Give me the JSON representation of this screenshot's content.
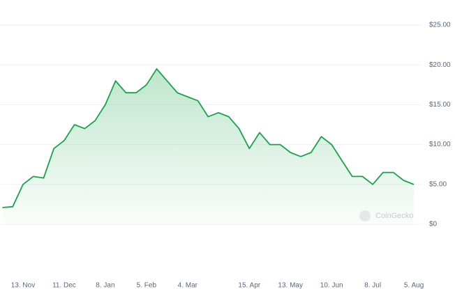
{
  "chart_data": {
    "type": "area",
    "watermark": "CoinGecko",
    "categories": [
      null,
      null,
      "13. Nov",
      null,
      null,
      null,
      "11. Dec",
      null,
      null,
      null,
      "8. Jan",
      null,
      null,
      null,
      "5. Feb",
      null,
      null,
      null,
      "4. Mar",
      null,
      null,
      null,
      null,
      null,
      "15. Apr",
      null,
      null,
      null,
      "13. May",
      null,
      null,
      null,
      "10. Jun",
      null,
      null,
      null,
      "8. Jul",
      null,
      null,
      null,
      "5. Aug"
    ],
    "values": [
      2.1,
      2.2,
      5,
      6,
      5.8,
      9.5,
      10.5,
      12.5,
      12,
      13,
      15,
      18,
      16.5,
      16.5,
      17.5,
      19.5,
      18,
      16.5,
      16,
      15.5,
      13.5,
      14,
      13.5,
      12,
      9.5,
      11.5,
      10,
      10,
      9,
      8.5,
      9,
      11,
      10,
      8,
      6,
      6,
      5,
      6.5,
      6.5,
      5.5,
      5
    ],
    "color": "#16a34a",
    "ylim": [
      0,
      25
    ],
    "yticks": [
      {
        "value": 0,
        "label": "$0"
      },
      {
        "value": 5,
        "label": "$5.00"
      },
      {
        "value": 10,
        "label": "$10.00"
      },
      {
        "value": 15,
        "label": "$15.00"
      },
      {
        "value": 20,
        "label": "$20.00"
      },
      {
        "value": 25,
        "label": "$25.00"
      }
    ],
    "grid": true
  }
}
